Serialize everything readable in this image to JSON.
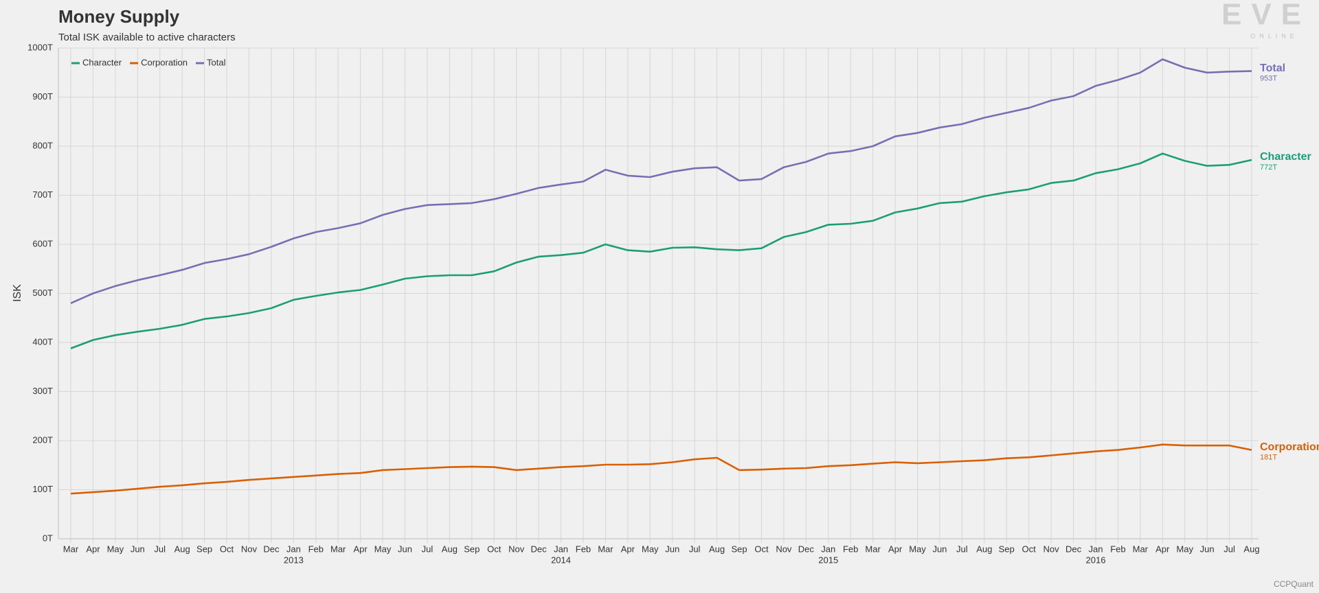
{
  "chart_data": {
    "type": "line",
    "title": "Money Supply",
    "subtitle": "Total ISK available to active characters",
    "y_label": "ISK",
    "logo": "EVE",
    "logo_sub": "ONLINE",
    "credit": "CCPQuant",
    "categories": [
      "Mar",
      "Apr",
      "May",
      "Jun",
      "Jul",
      "Aug",
      "Sep",
      "Oct",
      "Nov",
      "Dec",
      "Jan",
      "Feb",
      "Mar",
      "Apr",
      "May",
      "Jun",
      "Jul",
      "Aug",
      "Sep",
      "Oct",
      "Nov",
      "Dec",
      "Jan",
      "Feb",
      "Mar",
      "Apr",
      "May",
      "Jun",
      "Jul",
      "Aug",
      "Sep",
      "Oct",
      "Nov",
      "Dec",
      "Jan",
      "Feb",
      "Mar",
      "Apr",
      "May",
      "Jun",
      "Jul",
      "Aug",
      "Sep",
      "Oct",
      "Nov",
      "Dec",
      "Jan",
      "Feb",
      "Mar",
      "Apr",
      "May",
      "Jun",
      "Jul",
      "Aug"
    ],
    "year_labels": [
      "2013",
      "2014",
      "2015",
      "2016"
    ],
    "ylim": [
      0,
      1000
    ],
    "yticks": [
      {
        "value": 0,
        "label": "0T"
      },
      {
        "value": 100,
        "label": "100T"
      },
      {
        "value": 200,
        "label": "200T"
      },
      {
        "value": 300,
        "label": "300T"
      },
      {
        "value": 400,
        "label": "400T"
      },
      {
        "value": 500,
        "label": "500T"
      },
      {
        "value": 600,
        "label": "600T"
      },
      {
        "value": 700,
        "label": "700T"
      },
      {
        "value": 800,
        "label": "800T"
      },
      {
        "value": 900,
        "label": "900T"
      },
      {
        "value": 1000,
        "label": "1000T"
      }
    ],
    "grid": true,
    "legend": "top-left",
    "series": [
      {
        "name": "Character",
        "color": "#1b9e77",
        "last_label": "772T",
        "values": [
          388,
          405,
          415,
          422,
          428,
          436,
          448,
          453,
          460,
          470,
          487,
          495,
          502,
          507,
          518,
          530,
          535,
          537,
          537,
          545,
          563,
          575,
          578,
          583,
          600,
          588,
          585,
          593,
          594,
          590,
          588,
          592,
          615,
          625,
          640,
          642,
          648,
          665,
          673,
          684,
          687,
          698,
          706,
          712,
          725,
          730,
          745,
          753,
          765,
          785,
          770,
          760,
          762,
          772
        ]
      },
      {
        "name": "Corporation",
        "color": "#d95f02",
        "last_label": "181T",
        "values": [
          92,
          95,
          98,
          102,
          106,
          109,
          113,
          116,
          120,
          123,
          126,
          129,
          132,
          134,
          140,
          142,
          144,
          146,
          147,
          146,
          140,
          143,
          146,
          148,
          151,
          151,
          152,
          156,
          162,
          165,
          140,
          141,
          143,
          144,
          148,
          150,
          153,
          156,
          154,
          156,
          158,
          160,
          164,
          166,
          170,
          174,
          178,
          181,
          186,
          192,
          190,
          190,
          190,
          181
        ]
      },
      {
        "name": "Total",
        "color": "#7570b3",
        "last_label": "953T",
        "values": [
          480,
          500,
          515,
          527,
          537,
          548,
          562,
          570,
          580,
          595,
          612,
          625,
          633,
          643,
          660,
          672,
          680,
          682,
          684,
          692,
          703,
          715,
          722,
          728,
          752,
          740,
          737,
          748,
          755,
          757,
          730,
          733,
          757,
          768,
          785,
          790,
          800,
          820,
          827,
          838,
          845,
          858,
          868,
          878,
          893,
          902,
          923,
          935,
          950,
          977,
          960,
          950,
          952,
          953
        ]
      }
    ]
  }
}
